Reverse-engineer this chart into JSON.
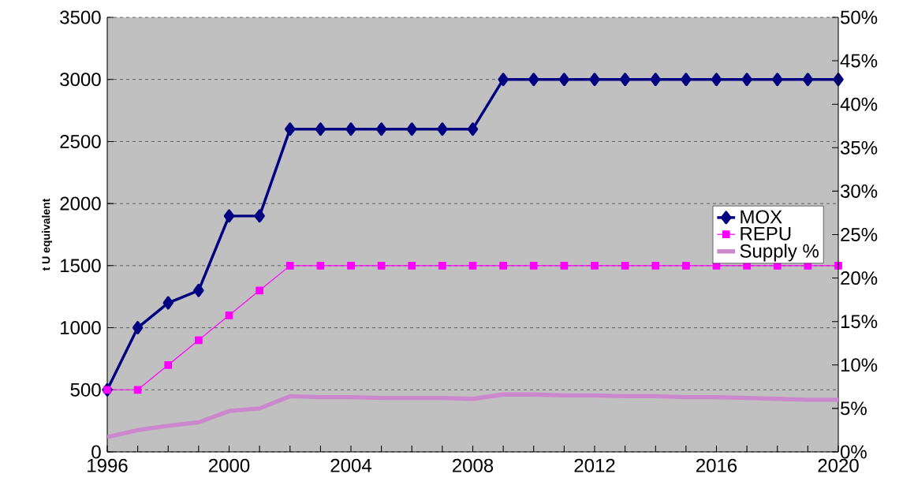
{
  "chart_data": {
    "type": "line",
    "ylabel": "t U equivalent",
    "x": [
      1996,
      1997,
      1998,
      1999,
      2000,
      2001,
      2002,
      2003,
      2004,
      2005,
      2006,
      2007,
      2008,
      2009,
      2010,
      2011,
      2012,
      2013,
      2014,
      2015,
      2016,
      2017,
      2018,
      2019,
      2020
    ],
    "series": [
      {
        "name": "MOX",
        "color": "#000080",
        "marker": "diamond",
        "values": [
          500,
          1000,
          1200,
          1300,
          1900,
          1900,
          2600,
          2600,
          2600,
          2600,
          2600,
          2600,
          2600,
          3000,
          3000,
          3000,
          3000,
          3000,
          3000,
          3000,
          3000,
          3000,
          3000,
          3000,
          3000
        ]
      },
      {
        "name": "REPU",
        "color": "#ff00ff",
        "marker": "square",
        "values": [
          500,
          500,
          700,
          900,
          1100,
          1300,
          1500,
          1500,
          1500,
          1500,
          1500,
          1500,
          1500,
          1500,
          1500,
          1500,
          1500,
          1500,
          1500,
          1500,
          1500,
          1500,
          1500,
          1500,
          1500
        ]
      },
      {
        "name": "Supply %",
        "color": "#cc88cc",
        "marker": "none",
        "axis": "y2",
        "values": [
          1.7,
          2.5,
          3.0,
          3.4,
          4.7,
          5.0,
          6.4,
          6.3,
          6.3,
          6.2,
          6.2,
          6.2,
          6.1,
          6.6,
          6.6,
          6.5,
          6.5,
          6.4,
          6.4,
          6.3,
          6.3,
          6.2,
          6.1,
          6.0,
          6.0
        ]
      }
    ],
    "xlim": [
      1996,
      2020
    ],
    "xticks": [
      1996,
      {
        "value": 1997,
        "label": null
      },
      {
        "value": 1998,
        "label": null
      },
      {
        "value": 1999,
        "label": null
      },
      2000,
      {
        "value": 2001,
        "label": null
      },
      {
        "value": 2002,
        "label": null
      },
      {
        "value": 2003,
        "label": null
      },
      2004,
      {
        "value": 2005,
        "label": null
      },
      {
        "value": 2006,
        "label": null
      },
      {
        "value": 2007,
        "label": null
      },
      2008,
      {
        "value": 2009,
        "label": null
      },
      {
        "value": 2010,
        "label": null
      },
      {
        "value": 2011,
        "label": null
      },
      2012,
      {
        "value": 2013,
        "label": null
      },
      {
        "value": 2014,
        "label": null
      },
      {
        "value": 2015,
        "label": null
      },
      2016,
      {
        "value": 2017,
        "label": null
      },
      {
        "value": 2018,
        "label": null
      },
      {
        "value": 2019,
        "label": null
      },
      2020
    ],
    "ylim": [
      0,
      3500
    ],
    "yticks": [
      0,
      500,
      1000,
      1500,
      2000,
      2500,
      3000,
      3500
    ],
    "y2lim": [
      0,
      50
    ],
    "y2ticks": [
      {
        "value": 0,
        "label": "0%"
      },
      {
        "value": 5,
        "label": "5%"
      },
      {
        "value": 10,
        "label": "10%"
      },
      {
        "value": 15,
        "label": "15%"
      },
      {
        "value": 20,
        "label": "20%"
      },
      {
        "value": 25,
        "label": "25%"
      },
      {
        "value": 30,
        "label": "30%"
      },
      {
        "value": 35,
        "label": "35%"
      },
      {
        "value": 40,
        "label": "40%"
      },
      {
        "value": 45,
        "label": "45%"
      },
      {
        "value": 50,
        "label": "50%"
      }
    ],
    "grid": "y",
    "legend": "right"
  }
}
